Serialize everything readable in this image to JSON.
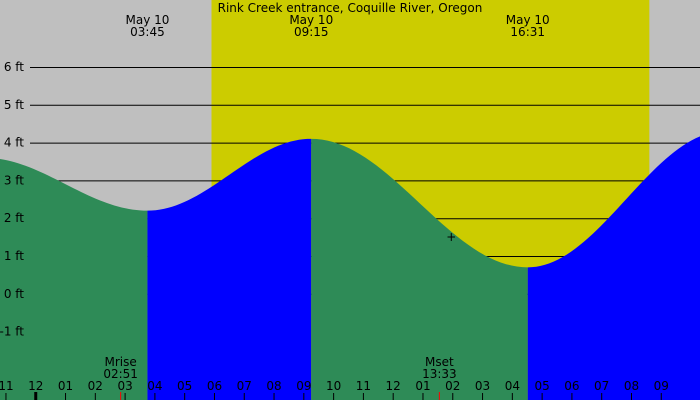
{
  "chart_data": {
    "type": "area",
    "title": "Rink Creek entrance, Coquille River, Oregon",
    "xlabel": "",
    "ylabel": "",
    "y_unit": "ft",
    "ylim": [
      -1.5,
      6.7
    ],
    "xlim": [
      22.8,
      46.3
    ],
    "y_ticks": [
      {
        "value": 6,
        "label": "6 ft"
      },
      {
        "value": 5,
        "label": "5 ft"
      },
      {
        "value": 4,
        "label": "4 ft"
      },
      {
        "value": 3,
        "label": "3 ft"
      },
      {
        "value": 2,
        "label": "2 ft"
      },
      {
        "value": 1,
        "label": "1 ft"
      },
      {
        "value": 0,
        "label": "0 ft"
      },
      {
        "value": -1,
        "label": "-1 ft"
      }
    ],
    "x_ticks": [
      {
        "hour": 23,
        "label": "11"
      },
      {
        "hour": 24,
        "label": "12"
      },
      {
        "hour": 25,
        "label": "01"
      },
      {
        "hour": 26,
        "label": "02"
      },
      {
        "hour": 27,
        "label": "03"
      },
      {
        "hour": 28,
        "label": "04"
      },
      {
        "hour": 29,
        "label": "05"
      },
      {
        "hour": 30,
        "label": "06"
      },
      {
        "hour": 31,
        "label": "07"
      },
      {
        "hour": 32,
        "label": "08"
      },
      {
        "hour": 33,
        "label": "09"
      },
      {
        "hour": 34,
        "label": "10"
      },
      {
        "hour": 35,
        "label": "11"
      },
      {
        "hour": 36,
        "label": "12"
      },
      {
        "hour": 37,
        "label": "01"
      },
      {
        "hour": 38,
        "label": "02"
      },
      {
        "hour": 39,
        "label": "03"
      },
      {
        "hour": 40,
        "label": "04"
      },
      {
        "hour": 41,
        "label": "05"
      },
      {
        "hour": 42,
        "label": "06"
      },
      {
        "hour": 43,
        "label": "07"
      },
      {
        "hour": 44,
        "label": "08"
      },
      {
        "hour": 45,
        "label": "09"
      }
    ],
    "tide_events": [
      {
        "hour": 27.75,
        "height": 2.2,
        "type": "low",
        "date": "May 10",
        "time": "03:45"
      },
      {
        "hour": 33.25,
        "height": 4.1,
        "type": "high",
        "date": "May 10",
        "time": "09:15"
      },
      {
        "hour": 40.5167,
        "height": 0.7,
        "type": "low",
        "date": "May 10",
        "time": "16:31"
      }
    ],
    "tide_start": {
      "hour": 22.8,
      "height": 2.95
    },
    "tide_end": {
      "hour": 46.3,
      "height": 3.6
    },
    "daylight": [
      {
        "start": 29.9,
        "end": 44.6
      }
    ],
    "moon_events": [
      {
        "label": "Mrise",
        "time": "02:51",
        "hour": 26.85
      },
      {
        "label": "Mset",
        "time": "13:33",
        "hour": 37.55
      }
    ],
    "current_marker": {
      "hour": 37.95,
      "height": 1.5,
      "symbol": "+"
    },
    "colors": {
      "night": "#bfbfbf",
      "day": "#cccc00",
      "falling": "#2e8b57",
      "rising": "#0000ff",
      "grid": "#000000",
      "moon_tick": "#ff0000"
    }
  }
}
